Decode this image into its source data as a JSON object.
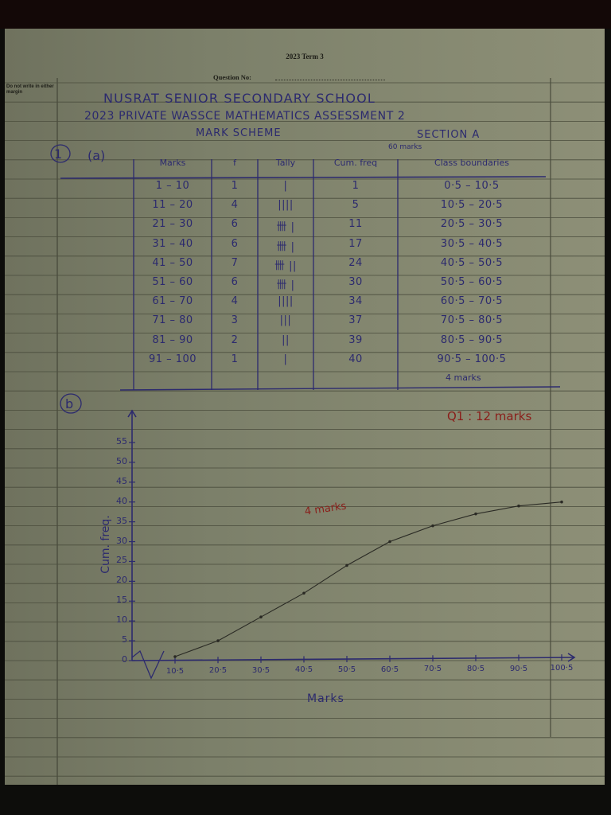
{
  "header": {
    "term": "2023 Term 3",
    "question_no_label": "Question No:",
    "margin_note": "Do not write in either margin"
  },
  "handwritten": {
    "school": "NUSRAT SENIOR SECONDARY SCHOOL",
    "assessment": "2023 PRIVATE WASSCE MATHEMATICS ASSESSMENT 2",
    "scheme": "MARK SCHEME",
    "section": "SECTION A",
    "section_marks": "60 marks",
    "question": "1",
    "part_a": "(a)",
    "part_b": "b",
    "table_marks": "4 marks",
    "question_marks": "Q1 : 12 marks",
    "graph_marks": "4 marks"
  },
  "table": {
    "headers": [
      "Marks",
      "f",
      "Tally",
      "Cum. freq",
      "Class boundaries"
    ],
    "rows": [
      [
        "1 – 10",
        "1",
        "|",
        "1",
        "0·5 – 10·5"
      ],
      [
        "11 – 20",
        "4",
        "||||",
        "5",
        "10·5 – 20·5"
      ],
      [
        "21 – 30",
        "6",
        "卌 |",
        "11",
        "20·5 – 30·5"
      ],
      [
        "31 – 40",
        "6",
        "卌 |",
        "17",
        "30·5 – 40·5"
      ],
      [
        "41 – 50",
        "7",
        "卌 ||",
        "24",
        "40·5 – 50·5"
      ],
      [
        "51 – 60",
        "6",
        "卌 |",
        "30",
        "50·5 – 60·5"
      ],
      [
        "61 – 70",
        "4",
        "||||",
        "34",
        "60·5 – 70·5"
      ],
      [
        "71 – 80",
        "3",
        "|||",
        "37",
        "70·5 – 80·5"
      ],
      [
        "81 – 90",
        "2",
        "||",
        "39",
        "80·5 – 90·5"
      ],
      [
        "91 – 100",
        "1",
        "|",
        "40",
        "90·5 – 100·5"
      ]
    ]
  },
  "chart_data": {
    "type": "line",
    "xlabel": "Marks",
    "ylabel": "Cum. freq.",
    "x_tick_labels": [
      "10·5",
      "20·5",
      "30·5",
      "40·5",
      "50·5",
      "60·5",
      "70·5",
      "80·5",
      "90·5",
      "100·5"
    ],
    "y_tick_labels": [
      "0",
      "5",
      "10",
      "15",
      "20",
      "25",
      "30",
      "35",
      "40",
      "45",
      "50",
      "55"
    ],
    "ylim": [
      0,
      55
    ],
    "xlim": [
      0.5,
      100.5
    ],
    "series": [
      {
        "x": [
          10.5,
          20.5,
          30.5,
          40.5,
          50.5,
          60.5,
          70.5,
          80.5,
          90.5,
          100.5
        ],
        "y": [
          1,
          5,
          11,
          17,
          24,
          30,
          34,
          37,
          39,
          40
        ]
      }
    ]
  },
  "colors": {
    "ink": "#2c2a6e",
    "red_ink": "#8a1e1a",
    "paper": "#7f8269"
  }
}
